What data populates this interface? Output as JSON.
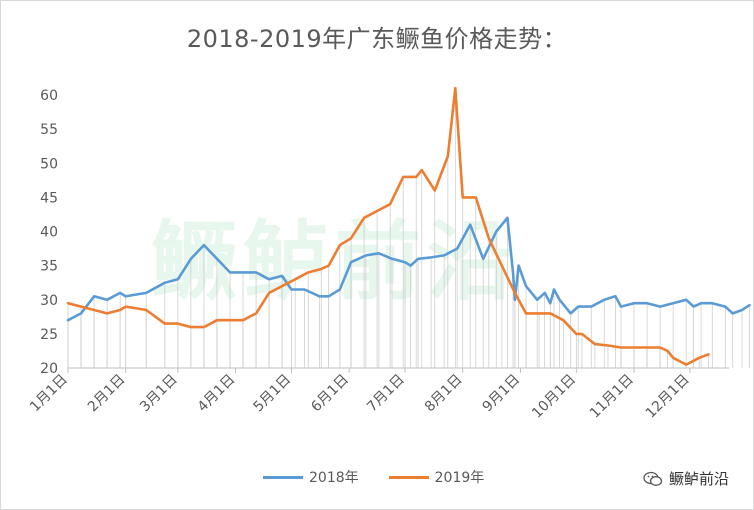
{
  "chart_data": {
    "type": "line",
    "title": "2018-2019年广东鳜鱼价格走势：",
    "ylim": [
      20,
      60
    ],
    "yticks": [
      20,
      25,
      30,
      35,
      40,
      45,
      50,
      55,
      60
    ],
    "xlim": [
      0,
      355
    ],
    "xticks": [
      {
        "label": "1月1日",
        "day": 0
      },
      {
        "label": "2月1日",
        "day": 31
      },
      {
        "label": "3月1日",
        "day": 59
      },
      {
        "label": "4月1日",
        "day": 90
      },
      {
        "label": "5月1日",
        "day": 120
      },
      {
        "label": "6月1日",
        "day": 151
      },
      {
        "label": "7月1日",
        "day": 181
      },
      {
        "label": "8月1日",
        "day": 212
      },
      {
        "label": "9月1日",
        "day": 243
      },
      {
        "label": "10月1日",
        "day": 273
      },
      {
        "label": "11月1日",
        "day": 304
      },
      {
        "label": "12月1日",
        "day": 334
      }
    ],
    "series": [
      {
        "name": "2018年",
        "color": "#5B9BD5",
        "points": [
          [
            0,
            27
          ],
          [
            7,
            28
          ],
          [
            14,
            30.5
          ],
          [
            21,
            30
          ],
          [
            28,
            31
          ],
          [
            31,
            30.5
          ],
          [
            42,
            31
          ],
          [
            52,
            32.5
          ],
          [
            59,
            33
          ],
          [
            66,
            36
          ],
          [
            73,
            38
          ],
          [
            80,
            36
          ],
          [
            87,
            34
          ],
          [
            94,
            34
          ],
          [
            101,
            34
          ],
          [
            108,
            33
          ],
          [
            115,
            33.5
          ],
          [
            120,
            31.5
          ],
          [
            127,
            31.5
          ],
          [
            135,
            30.5
          ],
          [
            140,
            30.5
          ],
          [
            146,
            31.5
          ],
          [
            152,
            35.5
          ],
          [
            160,
            36.5
          ],
          [
            167,
            36.8
          ],
          [
            174,
            36
          ],
          [
            181,
            35.5
          ],
          [
            184,
            35
          ],
          [
            188,
            36
          ],
          [
            195,
            36.2
          ],
          [
            202,
            36.5
          ],
          [
            209,
            37.5
          ],
          [
            216,
            41
          ],
          [
            223,
            36
          ],
          [
            230,
            40
          ],
          [
            236,
            42
          ],
          [
            239,
            34
          ],
          [
            240,
            30
          ],
          [
            242,
            35
          ],
          [
            246,
            32
          ],
          [
            252,
            30
          ],
          [
            256,
            31
          ],
          [
            259,
            29.5
          ],
          [
            261,
            31.5
          ],
          [
            264,
            30
          ],
          [
            270,
            28
          ],
          [
            274,
            29
          ],
          [
            281,
            29
          ],
          [
            288,
            30
          ],
          [
            294,
            30.5
          ],
          [
            297,
            29
          ],
          [
            304,
            29.5
          ],
          [
            311,
            29.5
          ],
          [
            318,
            29
          ],
          [
            325,
            29.5
          ],
          [
            332,
            30
          ],
          [
            336,
            29
          ],
          [
            340,
            29.5
          ],
          [
            346,
            29.5
          ],
          [
            353,
            29
          ],
          [
            357,
            28
          ],
          [
            362,
            28.5
          ],
          [
            366,
            29.2
          ]
        ]
      },
      {
        "name": "2019年",
        "color": "#ED7D31",
        "points": [
          [
            0,
            29.5
          ],
          [
            7,
            29
          ],
          [
            14,
            28.5
          ],
          [
            21,
            28
          ],
          [
            28,
            28.5
          ],
          [
            31,
            29
          ],
          [
            42,
            28.5
          ],
          [
            52,
            26.5
          ],
          [
            59,
            26.5
          ],
          [
            66,
            26
          ],
          [
            73,
            26
          ],
          [
            80,
            27
          ],
          [
            87,
            27
          ],
          [
            94,
            27
          ],
          [
            101,
            28
          ],
          [
            108,
            31
          ],
          [
            115,
            32
          ],
          [
            122,
            33
          ],
          [
            129,
            34
          ],
          [
            136,
            34.5
          ],
          [
            140,
            35
          ],
          [
            146,
            38
          ],
          [
            152,
            39
          ],
          [
            159,
            42
          ],
          [
            166,
            43
          ],
          [
            173,
            44
          ],
          [
            180,
            48
          ],
          [
            187,
            48
          ],
          [
            190,
            49
          ],
          [
            197,
            46
          ],
          [
            204,
            51
          ],
          [
            208,
            61
          ],
          [
            212,
            45
          ],
          [
            219,
            45
          ],
          [
            226,
            39
          ],
          [
            233,
            35
          ],
          [
            240,
            31
          ],
          [
            246,
            28
          ],
          [
            253,
            28
          ],
          [
            259,
            28
          ],
          [
            266,
            27
          ],
          [
            273,
            25
          ],
          [
            276,
            25
          ],
          [
            283,
            23.5
          ],
          [
            290,
            23.3
          ],
          [
            297,
            23
          ],
          [
            304,
            23
          ],
          [
            311,
            23
          ],
          [
            318,
            23
          ],
          [
            322,
            22.5
          ],
          [
            325,
            21.5
          ],
          [
            332,
            20.5
          ],
          [
            339,
            21.5
          ],
          [
            344,
            22
          ]
        ]
      }
    ],
    "legend": "bottom"
  },
  "watermark": "鳜鲈前沿",
  "brand": {
    "icon": "wechat-icon",
    "text": "鳜鲈前沿"
  }
}
